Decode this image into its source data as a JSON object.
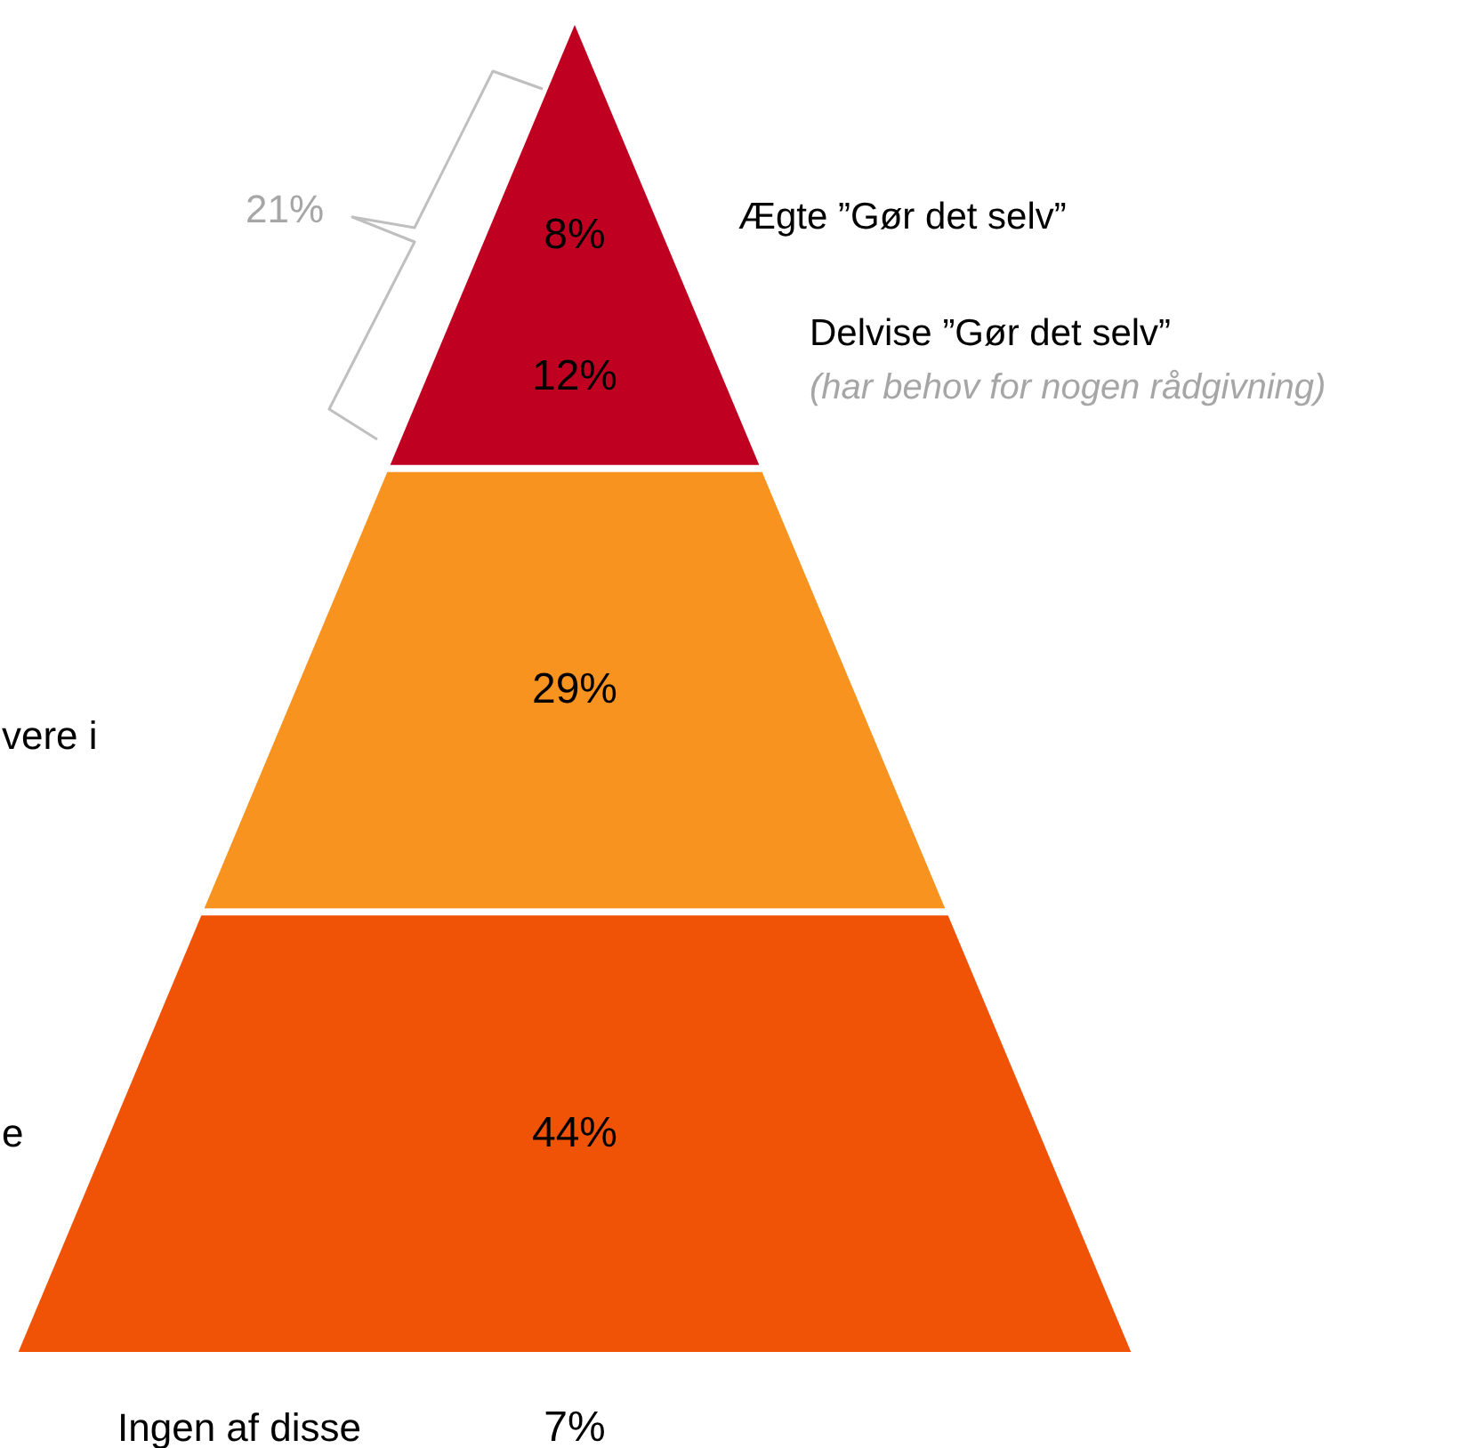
{
  "chart_data": {
    "type": "other",
    "categories": [
      "Ægte ”Gør det selv”",
      "Delvise ”Gør det selv”",
      "vere i",
      "e",
      "Ingen af disse"
    ],
    "values": [
      8,
      12,
      29,
      44,
      7
    ],
    "value_labels": [
      "8%",
      "12%",
      "29%",
      "44%",
      "7%"
    ],
    "colors": [
      "#c00020",
      "#c00020",
      "#f7931e",
      "#f05206",
      null
    ],
    "annotations": [
      "(har behov for nogen rådgivning)",
      "21%"
    ]
  }
}
